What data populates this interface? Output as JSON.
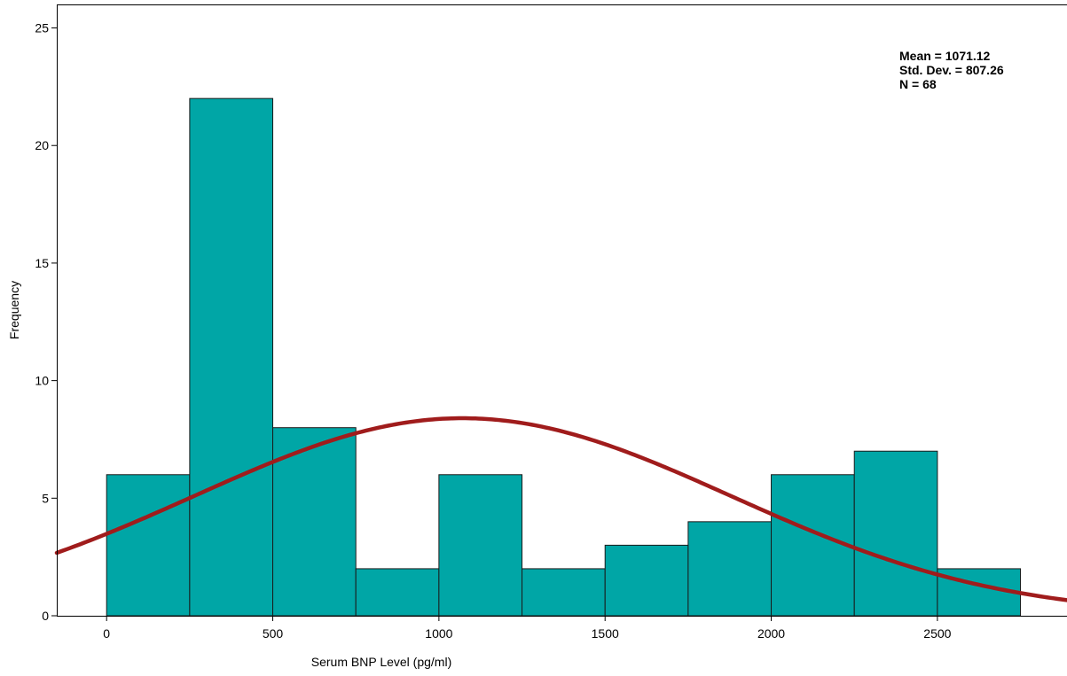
{
  "chart_data": {
    "type": "bar",
    "subtype": "histogram",
    "bin_width": 250,
    "bins": [
      {
        "start": 0,
        "end": 250,
        "count": 6
      },
      {
        "start": 250,
        "end": 500,
        "count": 22
      },
      {
        "start": 500,
        "end": 750,
        "count": 8
      },
      {
        "start": 750,
        "end": 1000,
        "count": 2
      },
      {
        "start": 1000,
        "end": 1250,
        "count": 6
      },
      {
        "start": 1250,
        "end": 1500,
        "count": 2
      },
      {
        "start": 1500,
        "end": 1750,
        "count": 3
      },
      {
        "start": 1750,
        "end": 2000,
        "count": 4
      },
      {
        "start": 2000,
        "end": 2250,
        "count": 6
      },
      {
        "start": 2250,
        "end": 2500,
        "count": 7
      },
      {
        "start": 2500,
        "end": 2750,
        "count": 2
      }
    ],
    "xlabel": "Serum BNP Level (pg/ml)",
    "ylabel": "Frequency",
    "xlim": [
      -150,
      2890
    ],
    "ylim": [
      0,
      26
    ],
    "xticks": [
      0,
      500,
      1000,
      1500,
      2000,
      2500
    ],
    "yticks": [
      0,
      5,
      10,
      15,
      20,
      25
    ],
    "grid": false,
    "normal_curve": {
      "mean": 1071.12,
      "sd": 807.26,
      "n": 68
    },
    "stats_box": {
      "mean_text": "Mean = 1071.12",
      "sd_text": "Std. Dev. = 807.26",
      "n_text": "N = 68"
    },
    "colors": {
      "bar_fill": "#00A6A6",
      "bar_stroke": "#1a1a1a",
      "curve": "#A01C1C",
      "axis": "#000000"
    }
  }
}
